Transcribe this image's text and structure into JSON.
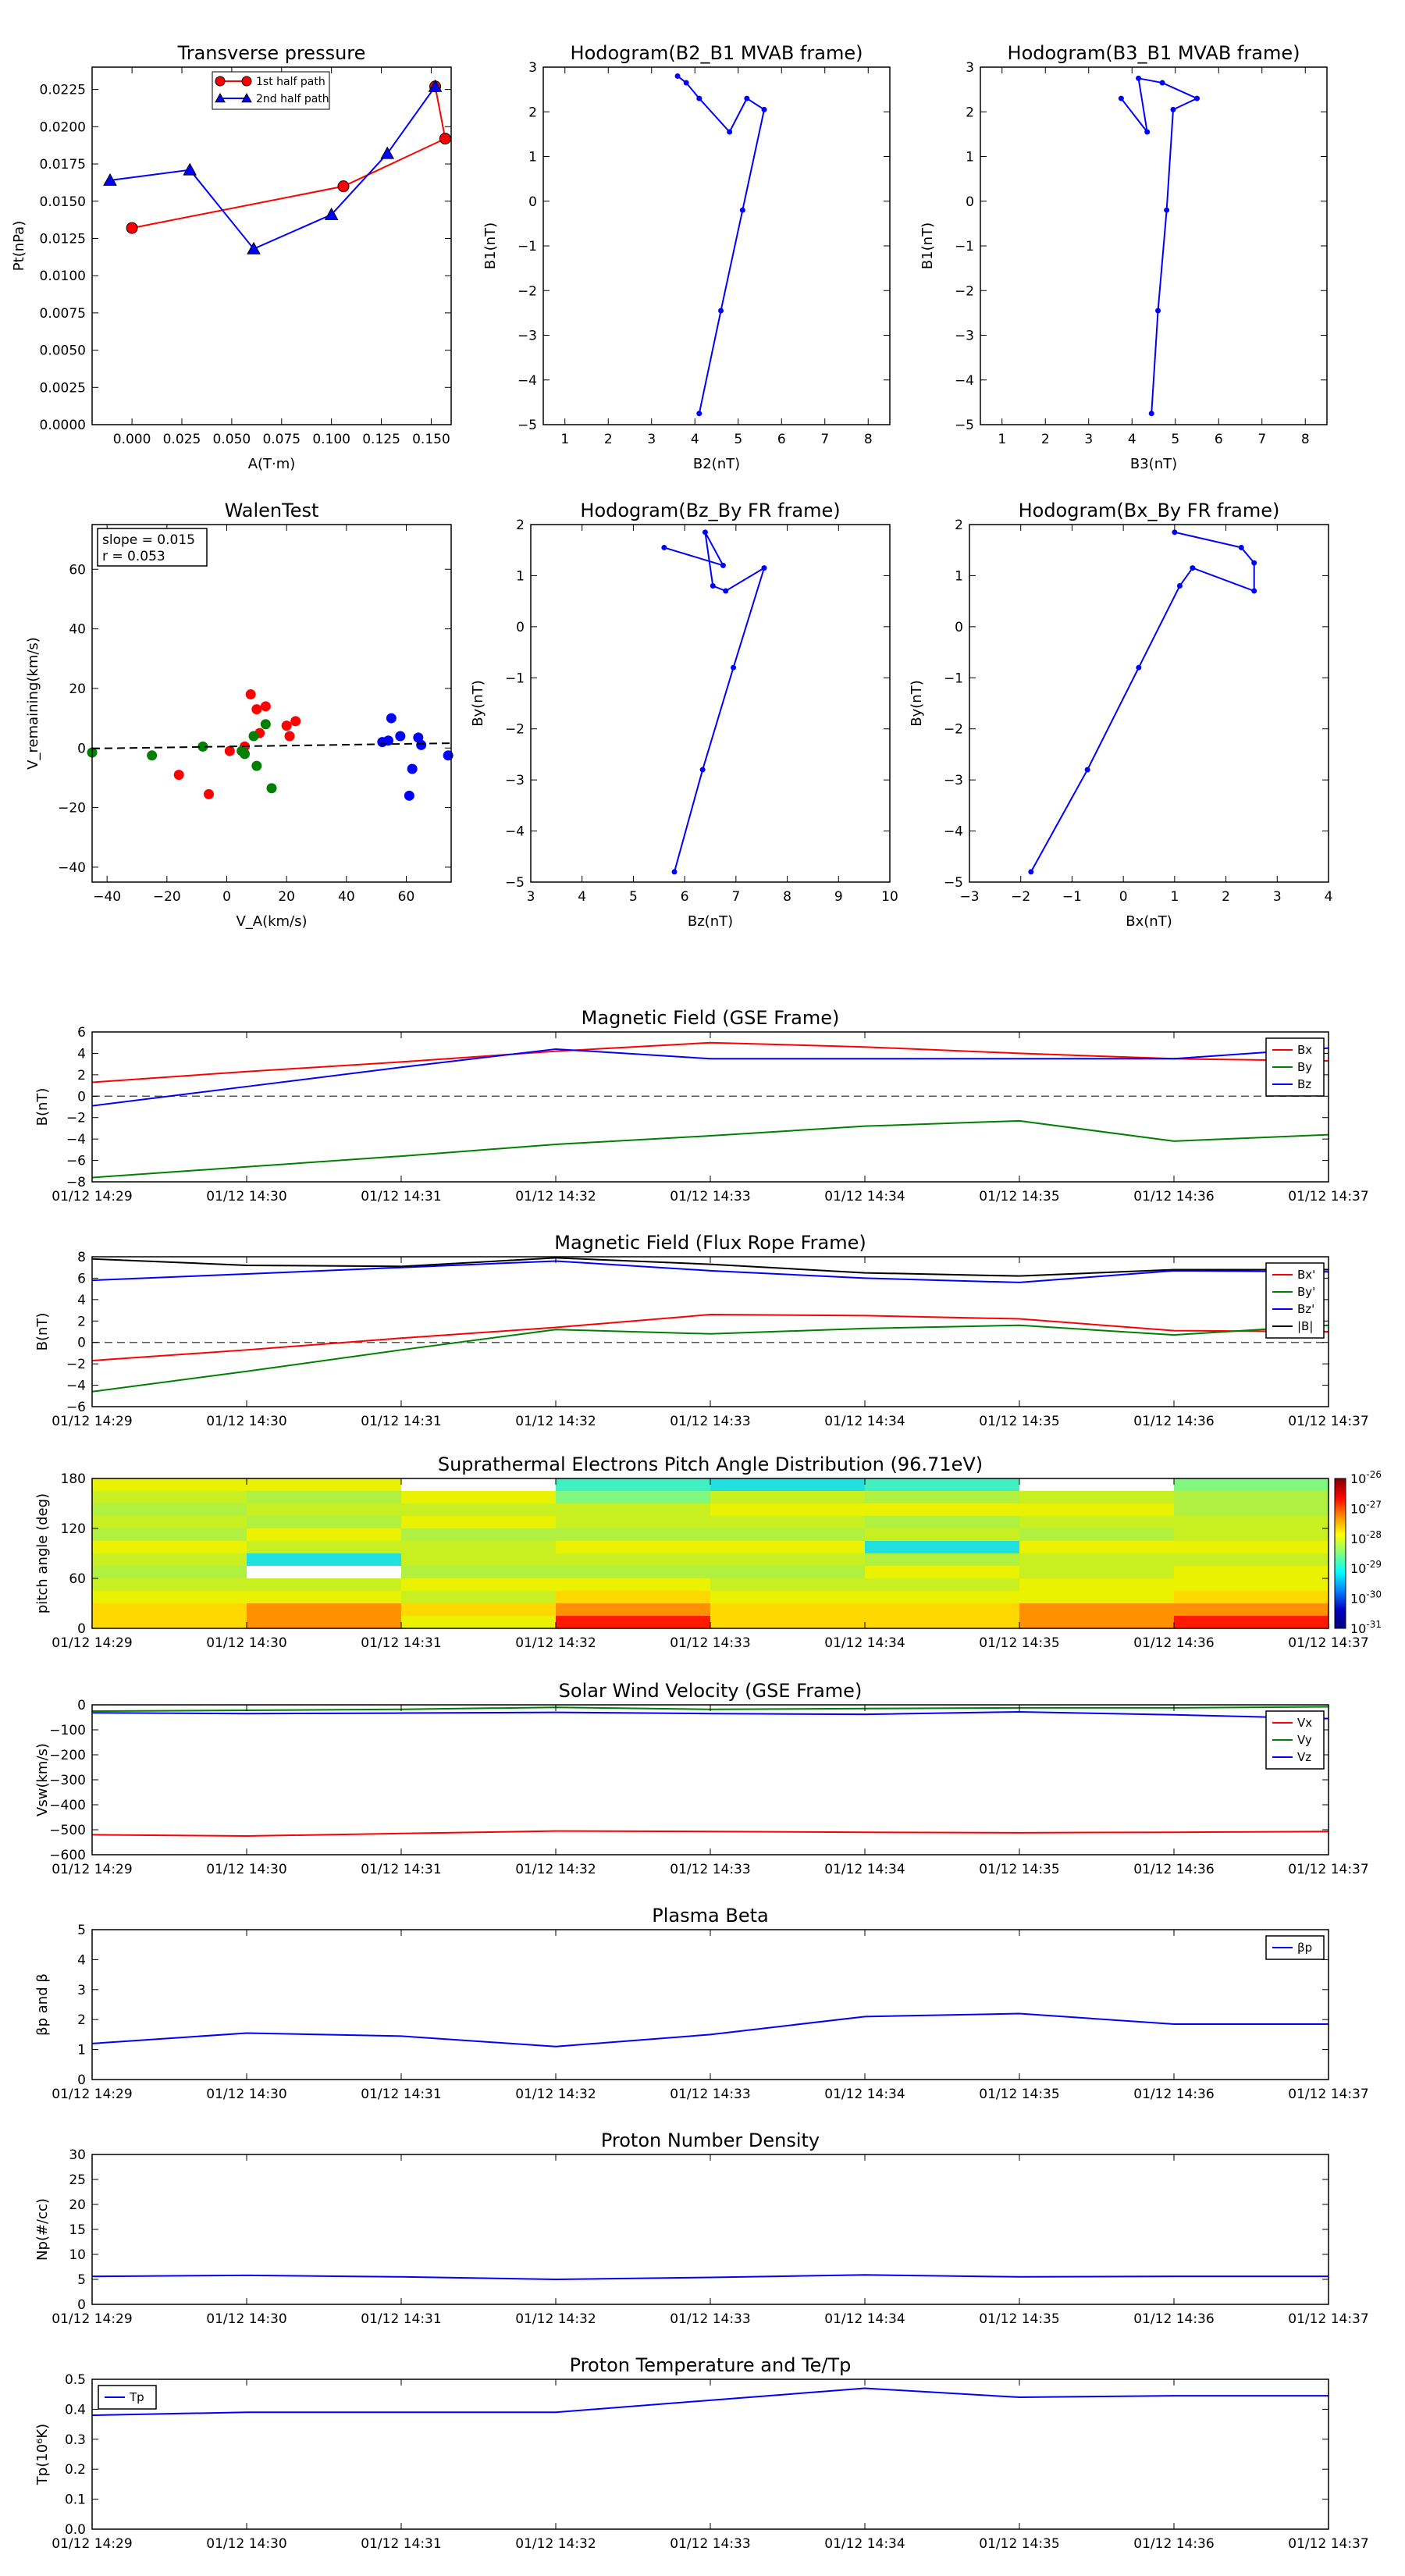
{
  "chart_data": [
    {
      "type": "line",
      "title": "Transverse pressure",
      "xlabel": "A(T·m)",
      "ylabel": "Pt(nPa)",
      "xlim": [
        -0.02,
        0.16
      ],
      "ylim": [
        0,
        0.024
      ],
      "xticks": [
        0.0,
        0.025,
        0.05,
        0.075,
        0.1,
        0.125,
        0.15
      ],
      "xticklabels": [
        "0.000",
        "0.025",
        "0.050",
        "0.075",
        "0.100",
        "0.125",
        "0.150"
      ],
      "yticks": [
        0,
        0.0025,
        0.005,
        0.0075,
        0.01,
        0.0125,
        0.015,
        0.0175,
        0.02,
        0.0225
      ],
      "yticklabels": [
        "0.0000",
        "0.0025",
        "0.0050",
        "0.0075",
        "0.0100",
        "0.0125",
        "0.0150",
        "0.0175",
        "0.0200",
        "0.0225"
      ],
      "legend": "top-center",
      "series": [
        {
          "name": "1st half path",
          "color": "#ff0000",
          "marker": "circle",
          "x": [
            0.0,
            0.106,
            0.157,
            0.152
          ],
          "y": [
            0.0132,
            0.016,
            0.0192,
            0.0227
          ]
        },
        {
          "name": "2nd half path",
          "color": "#0000ff",
          "marker": "triangle",
          "x": [
            0.152,
            0.128,
            0.1,
            0.061,
            0.029,
            -0.011
          ],
          "y": [
            0.0227,
            0.0182,
            0.0141,
            0.0118,
            0.0171,
            0.0164
          ]
        }
      ]
    },
    {
      "type": "line",
      "title": "Hodogram(B2_B1 MVAB frame)",
      "xlabel": "B2(nT)",
      "ylabel": "B1(nT)",
      "xlim": [
        0.5,
        8.5
      ],
      "ylim": [
        -5,
        3
      ],
      "xticks": [
        1,
        2,
        3,
        4,
        5,
        6,
        7,
        8
      ],
      "xticklabels": [
        "1",
        "2",
        "3",
        "4",
        "5",
        "6",
        "7",
        "8"
      ],
      "yticks": [
        -5,
        -4,
        -3,
        -2,
        -1,
        0,
        1,
        2,
        3
      ],
      "yticklabels": [
        "−5",
        "−4",
        "−3",
        "−2",
        "−1",
        "0",
        "1",
        "2",
        "3"
      ],
      "series": [
        {
          "name": "hodogram",
          "color": "#0000ff",
          "x": [
            4.1,
            4.6,
            5.1,
            5.6,
            5.2,
            4.8,
            4.1,
            3.8,
            3.6
          ],
          "y": [
            -4.75,
            -2.45,
            -0.2,
            2.05,
            2.3,
            1.55,
            2.3,
            2.65,
            2.8
          ]
        }
      ]
    },
    {
      "type": "line",
      "title": "Hodogram(B3_B1 MVAB frame)",
      "xlabel": "B3(nT)",
      "ylabel": "B1(nT)",
      "xlim": [
        0.5,
        8.5
      ],
      "ylim": [
        -5,
        3
      ],
      "xticks": [
        1,
        2,
        3,
        4,
        5,
        6,
        7,
        8
      ],
      "xticklabels": [
        "1",
        "2",
        "3",
        "4",
        "5",
        "6",
        "7",
        "8"
      ],
      "yticks": [
        -5,
        -4,
        -3,
        -2,
        -1,
        0,
        1,
        2,
        3
      ],
      "yticklabels": [
        "−5",
        "−4",
        "−3",
        "−2",
        "−1",
        "0",
        "1",
        "2",
        "3"
      ],
      "series": [
        {
          "name": "hodogram",
          "color": "#0000ff",
          "x": [
            4.45,
            4.6,
            4.8,
            4.95,
            5.5,
            4.7,
            4.15,
            4.35,
            3.75
          ],
          "y": [
            -4.75,
            -2.45,
            -0.2,
            2.05,
            2.3,
            2.65,
            2.75,
            1.55,
            2.3
          ]
        }
      ]
    },
    {
      "type": "scatter",
      "title": "WalenTest",
      "xlabel": "V_A(km/s)",
      "ylabel": "V_remaining(km/s)",
      "xlim": [
        -45,
        75
      ],
      "ylim": [
        -45,
        75
      ],
      "xticks": [
        -40,
        -20,
        0,
        20,
        40,
        60
      ],
      "xticklabels": [
        "−40",
        "−20",
        "0",
        "20",
        "40",
        "60"
      ],
      "yticks": [
        -40,
        -20,
        0,
        20,
        40,
        60
      ],
      "yticklabels": [
        "−40",
        "−20",
        "0",
        "20",
        "40",
        "60"
      ],
      "annotation": [
        "slope = 0.015",
        "r = 0.053"
      ],
      "fit_line": {
        "slope": 0.015,
        "intercept": 0.5,
        "color": "#000000",
        "style": "dashed"
      },
      "series": [
        {
          "name": "red",
          "color": "#ff0000",
          "x": [
            -16,
            -6,
            1,
            6,
            8,
            10,
            11,
            13,
            20,
            21,
            23
          ],
          "y": [
            -9,
            -15.5,
            -1,
            0.5,
            18,
            13,
            5,
            14,
            7.5,
            4,
            9
          ]
        },
        {
          "name": "green",
          "color": "#008000",
          "x": [
            -45,
            -25,
            -8,
            5,
            6,
            9,
            10,
            13,
            15
          ],
          "y": [
            -1.5,
            -2.5,
            0.5,
            -1,
            -2,
            4,
            -6,
            8,
            -13.5
          ]
        },
        {
          "name": "blue",
          "color": "#0000ff",
          "x": [
            52,
            54,
            55,
            58,
            61,
            62,
            64,
            65,
            74
          ],
          "y": [
            2,
            2.5,
            10,
            4,
            -16,
            -7,
            3.5,
            1,
            -2.5
          ]
        }
      ]
    },
    {
      "type": "line",
      "title": "Hodogram(Bz_By FR frame)",
      "xlabel": "Bz(nT)",
      "ylabel": "By(nT)",
      "xlim": [
        3,
        10
      ],
      "ylim": [
        -5,
        2
      ],
      "xticks": [
        3,
        4,
        5,
        6,
        7,
        8,
        9,
        10
      ],
      "xticklabels": [
        "3",
        "4",
        "5",
        "6",
        "7",
        "8",
        "9",
        "10"
      ],
      "yticks": [
        -5,
        -4,
        -3,
        -2,
        -1,
        0,
        1,
        2
      ],
      "yticklabels": [
        "−5",
        "−4",
        "−3",
        "−2",
        "−1",
        "0",
        "1",
        "2"
      ],
      "series": [
        {
          "name": "hodogram",
          "color": "#0000ff",
          "x": [
            5.8,
            6.35,
            6.95,
            7.55,
            6.8,
            6.55,
            6.4,
            6.75,
            5.6
          ],
          "y": [
            -4.8,
            -2.8,
            -0.8,
            1.15,
            0.7,
            0.8,
            1.85,
            1.2,
            1.55
          ]
        }
      ]
    },
    {
      "type": "line",
      "title": "Hodogram(Bx_By FR frame)",
      "xlabel": "Bx(nT)",
      "ylabel": "By(nT)",
      "xlim": [
        -3,
        4
      ],
      "ylim": [
        -5,
        2
      ],
      "xticks": [
        -3,
        -2,
        -1,
        0,
        1,
        2,
        3,
        4
      ],
      "xticklabels": [
        "−3",
        "−2",
        "−1",
        "0",
        "1",
        "2",
        "3",
        "4"
      ],
      "yticks": [
        -5,
        -4,
        -3,
        -2,
        -1,
        0,
        1,
        2
      ],
      "yticklabels": [
        "−5",
        "−4",
        "−3",
        "−2",
        "−1",
        "0",
        "1",
        "2"
      ],
      "series": [
        {
          "name": "hodogram",
          "color": "#0000ff",
          "x": [
            -1.8,
            -0.7,
            0.3,
            1.1,
            1.35,
            2.55,
            2.55,
            2.3,
            1.0
          ],
          "y": [
            -4.8,
            -2.8,
            -0.8,
            0.8,
            1.15,
            0.7,
            1.25,
            1.55,
            1.85
          ]
        }
      ]
    },
    {
      "type": "line",
      "title": "Magnetic Field (GSE Frame)",
      "ylabel": "B(nT)",
      "categories": [
        "01/12 14:29",
        "01/12 14:30",
        "01/12 14:31",
        "01/12 14:32",
        "01/12 14:33",
        "01/12 14:34",
        "01/12 14:35",
        "01/12 14:36",
        "01/12 14:37"
      ],
      "ylim": [
        -8,
        6
      ],
      "yticks": [
        -8,
        -6,
        -4,
        -2,
        0,
        2,
        4,
        6
      ],
      "yticklabels": [
        "−8",
        "−6",
        "−4",
        "−2",
        "0",
        "2",
        "4",
        "6"
      ],
      "zero_line": true,
      "legend": "top-right",
      "series": [
        {
          "name": "Bx",
          "color": "#ff0000",
          "values": [
            1.3,
            2.3,
            3.2,
            4.2,
            5.0,
            4.6,
            4.0,
            3.5,
            3.3
          ]
        },
        {
          "name": "By",
          "color": "#008000",
          "values": [
            -7.6,
            -6.6,
            -5.6,
            -4.5,
            -3.7,
            -2.8,
            -2.3,
            -4.2,
            -3.6
          ]
        },
        {
          "name": "Bz",
          "color": "#0000ff",
          "values": [
            -0.9,
            0.9,
            2.7,
            4.4,
            3.5,
            3.5,
            3.5,
            3.5,
            4.5
          ]
        }
      ]
    },
    {
      "type": "line",
      "title": "Magnetic Field (Flux Rope Frame)",
      "ylabel": "B(nT)",
      "categories": [
        "01/12 14:29",
        "01/12 14:30",
        "01/12 14:31",
        "01/12 14:32",
        "01/12 14:33",
        "01/12 14:34",
        "01/12 14:35",
        "01/12 14:36",
        "01/12 14:37"
      ],
      "ylim": [
        -6,
        8
      ],
      "yticks": [
        -6,
        -4,
        -2,
        0,
        2,
        4,
        6,
        8
      ],
      "yticklabels": [
        "−6",
        "−4",
        "−2",
        "0",
        "2",
        "4",
        "6",
        "8"
      ],
      "zero_line": true,
      "legend": "top-right",
      "series": [
        {
          "name": "Bx'",
          "color": "#ff0000",
          "values": [
            -1.7,
            -0.7,
            0.4,
            1.4,
            2.6,
            2.5,
            2.2,
            1.1,
            1.0
          ]
        },
        {
          "name": "By'",
          "color": "#008000",
          "values": [
            -4.6,
            -2.7,
            -0.7,
            1.2,
            0.8,
            1.3,
            1.6,
            0.7,
            1.6
          ]
        },
        {
          "name": "Bz'",
          "color": "#0000ff",
          "values": [
            5.8,
            6.4,
            7.0,
            7.6,
            6.7,
            6.0,
            5.6,
            6.7,
            6.6
          ]
        },
        {
          "name": "|B|",
          "color": "#000000",
          "values": [
            7.8,
            7.2,
            7.1,
            7.9,
            7.3,
            6.5,
            6.2,
            6.8,
            6.8
          ]
        }
      ]
    },
    {
      "type": "heatmap",
      "title": "Suprathermal Electrons Pitch Angle Distribution (96.71eV)",
      "ylabel": "pitch angle (deg)",
      "categories": [
        "01/12 14:29",
        "01/12 14:30",
        "01/12 14:31",
        "01/12 14:32",
        "01/12 14:33",
        "01/12 14:34",
        "01/12 14:35",
        "01/12 14:36",
        "01/12 14:37"
      ],
      "ylim": [
        0,
        180
      ],
      "yticks": [
        0,
        60,
        120,
        180
      ],
      "yticklabels": [
        "0",
        "60",
        "120",
        "180"
      ],
      "colorbar_ticks": [
        "10-26",
        "10-27",
        "10-28",
        "10-29",
        "10-30",
        "10-31"
      ],
      "colors": [
        "#ff1a00",
        "#ff9000",
        "#ffd800",
        "#eaf200",
        "#c8f020",
        "#b0f040",
        "#80f880",
        "#40f0c0",
        "#20e0e0",
        "#ffffff"
      ],
      "time_bins": 8,
      "pitch_bins": 12,
      "levels": [
        [
          3,
          4,
          5,
          4,
          5,
          3,
          4,
          5,
          4,
          3,
          2,
          2
        ],
        [
          3,
          5,
          4,
          5,
          3,
          4,
          8,
          9,
          4,
          3,
          1,
          1
        ],
        [
          9,
          3,
          4,
          3,
          5,
          4,
          4,
          5,
          3,
          4,
          2,
          3
        ],
        [
          7,
          6,
          4,
          4,
          5,
          3,
          4,
          5,
          3,
          2,
          1,
          0
        ],
        [
          8,
          4,
          3,
          4,
          5,
          3,
          4,
          5,
          4,
          3,
          2,
          2
        ],
        [
          7,
          5,
          3,
          5,
          4,
          8,
          5,
          3,
          4,
          3,
          2,
          2
        ],
        [
          9,
          4,
          3,
          4,
          5,
          3,
          4,
          4,
          3,
          3,
          1,
          1
        ],
        [
          6,
          5,
          5,
          4,
          4,
          3,
          4,
          3,
          3,
          2,
          1,
          0
        ]
      ]
    },
    {
      "type": "line",
      "title": "Solar Wind Velocity (GSE Frame)",
      "ylabel": "Vsw(km/s)",
      "categories": [
        "01/12 14:29",
        "01/12 14:30",
        "01/12 14:31",
        "01/12 14:32",
        "01/12 14:33",
        "01/12 14:34",
        "01/12 14:35",
        "01/12 14:36",
        "01/12 14:37"
      ],
      "ylim": [
        -600,
        0
      ],
      "yticks": [
        -600,
        -500,
        -400,
        -300,
        -200,
        -100,
        0
      ],
      "yticklabels": [
        "−600",
        "−500",
        "−400",
        "−300",
        "−200",
        "−100",
        "0"
      ],
      "legend": "top-right",
      "series": [
        {
          "name": "Vx",
          "color": "#ff0000",
          "values": [
            -520,
            -525,
            -515,
            -505,
            -507,
            -510,
            -512,
            -510,
            -507
          ]
        },
        {
          "name": "Vy",
          "color": "#008000",
          "values": [
            -25,
            -22,
            -18,
            -10,
            -18,
            -15,
            -12,
            -12,
            -8
          ]
        },
        {
          "name": "Vz",
          "color": "#0000ff",
          "values": [
            -32,
            -35,
            -33,
            -30,
            -35,
            -38,
            -28,
            -40,
            -55
          ]
        }
      ]
    },
    {
      "type": "line",
      "title": "Plasma Beta",
      "ylabel": "βp and β",
      "categories": [
        "01/12 14:29",
        "01/12 14:30",
        "01/12 14:31",
        "01/12 14:32",
        "01/12 14:33",
        "01/12 14:34",
        "01/12 14:35",
        "01/12 14:36",
        "01/12 14:37"
      ],
      "ylim": [
        0,
        5
      ],
      "yticks": [
        0,
        1,
        2,
        3,
        4,
        5
      ],
      "yticklabels": [
        "0",
        "1",
        "2",
        "3",
        "4",
        "5"
      ],
      "legend": "top-right",
      "series": [
        {
          "name": "βp",
          "color": "#0000ff",
          "values": [
            1.2,
            1.55,
            1.45,
            1.1,
            1.5,
            2.1,
            2.2,
            1.85,
            1.85
          ]
        }
      ]
    },
    {
      "type": "line",
      "title": "Proton Number Density",
      "ylabel": "Np(#/cc)",
      "categories": [
        "01/12 14:29",
        "01/12 14:30",
        "01/12 14:31",
        "01/12 14:32",
        "01/12 14:33",
        "01/12 14:34",
        "01/12 14:35",
        "01/12 14:36",
        "01/12 14:37"
      ],
      "ylim": [
        0,
        30
      ],
      "yticks": [
        0,
        5,
        10,
        15,
        20,
        25,
        30
      ],
      "yticklabels": [
        "0",
        "5",
        "10",
        "15",
        "20",
        "25",
        "30"
      ],
      "series": [
        {
          "name": "Np",
          "color": "#0000ff",
          "values": [
            5.6,
            5.8,
            5.5,
            5.0,
            5.4,
            5.9,
            5.5,
            5.6,
            5.6
          ]
        }
      ]
    },
    {
      "type": "line",
      "title": "Proton Temperature and Te/Tp",
      "ylabel": "Tp(10⁶K)",
      "categories": [
        "01/12 14:29",
        "01/12 14:30",
        "01/12 14:31",
        "01/12 14:32",
        "01/12 14:33",
        "01/12 14:34",
        "01/12 14:35",
        "01/12 14:36",
        "01/12 14:37"
      ],
      "ylim": [
        0,
        0.5
      ],
      "yticks": [
        0,
        0.1,
        0.2,
        0.3,
        0.4,
        0.5
      ],
      "yticklabels": [
        "0.0",
        "0.1",
        "0.2",
        "0.3",
        "0.4",
        "0.5"
      ],
      "legend": "top-left",
      "series": [
        {
          "name": "Tp",
          "color": "#0000ff",
          "values": [
            0.38,
            0.39,
            0.39,
            0.39,
            0.43,
            0.47,
            0.44,
            0.445,
            0.445
          ]
        }
      ]
    }
  ]
}
